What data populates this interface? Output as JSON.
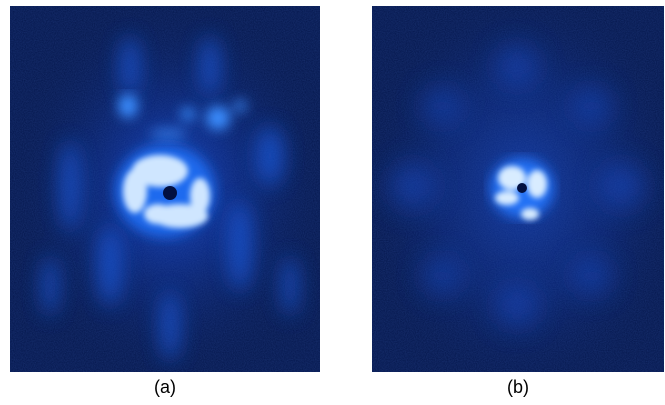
{
  "panels": [
    {
      "caption": "(a)",
      "colormap": [
        "#02113f",
        "#0a3ec9",
        "#3a8dff",
        "#ffffff"
      ]
    },
    {
      "caption": "(b)",
      "colormap": [
        "#02113f",
        "#0a3ec9",
        "#3a8dff",
        "#ffffff"
      ]
    }
  ]
}
